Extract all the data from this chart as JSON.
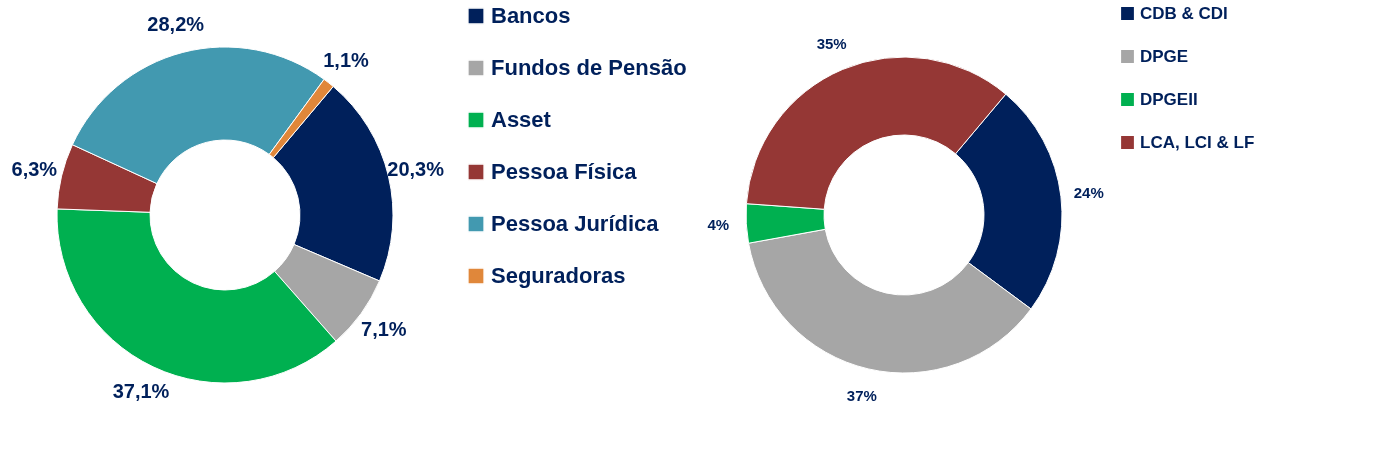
{
  "chart_data": [
    {
      "type": "donut",
      "categories": [
        "Bancos",
        "Fundos de Pensão",
        "Asset",
        "Pessoa Física",
        "Pessoa Jurídica",
        "Seguradoras"
      ],
      "values": [
        20.3,
        7.1,
        37.1,
        6.3,
        28.2,
        1.1
      ],
      "colors": [
        "#00205b",
        "#a6a6a6",
        "#00b050",
        "#953735",
        "#4299b0",
        "#e0873a"
      ],
      "value_labels": [
        "20,3%",
        "7,1%",
        "37,1%",
        "6,3%",
        "28,2%",
        "1,1%"
      ],
      "legend": "right"
    },
    {
      "type": "donut",
      "categories": [
        "CDB & CDI",
        "DPGE",
        "DPGEII",
        "LCA, LCI & LF"
      ],
      "values": [
        24,
        37,
        4,
        35
      ],
      "colors": [
        "#00205b",
        "#a6a6a6",
        "#00b050",
        "#953735"
      ],
      "value_labels": [
        "24%",
        "37%",
        "4%",
        "35%"
      ],
      "legend": "right"
    }
  ]
}
